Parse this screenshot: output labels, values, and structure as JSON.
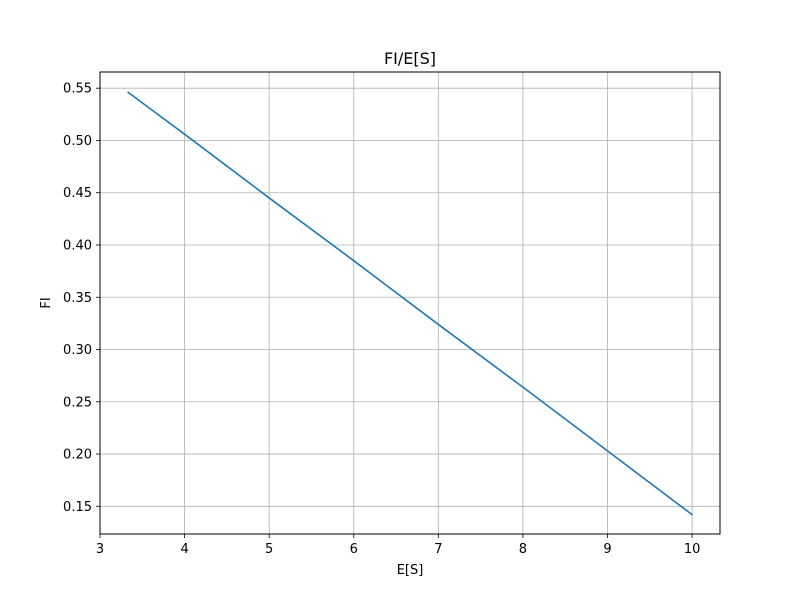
{
  "chart_data": {
    "type": "line",
    "title": "FI/E[S]",
    "xlabel": "E[S]",
    "ylabel": "FI",
    "xlim": [
      3.0,
      10.33
    ],
    "ylim": [
      0.1235,
      0.5655
    ],
    "x_ticks": [
      3,
      4,
      5,
      6,
      7,
      8,
      9,
      10
    ],
    "x_tick_labels": [
      "3",
      "4",
      "5",
      "6",
      "7",
      "8",
      "9",
      "10"
    ],
    "y_ticks": [
      0.15,
      0.2,
      0.25,
      0.3,
      0.35,
      0.4,
      0.45,
      0.5,
      0.55
    ],
    "y_tick_labels": [
      "0.15",
      "0.20",
      "0.25",
      "0.30",
      "0.35",
      "0.40",
      "0.45",
      "0.50",
      "0.55"
    ],
    "grid": true,
    "series": [
      {
        "color": "#1f77b4",
        "x": [
          3.333,
          4,
          5,
          6,
          7,
          8,
          9,
          10
        ],
        "y": [
          0.546,
          0.506,
          0.445,
          0.385,
          0.324,
          0.264,
          0.203,
          0.142
        ]
      }
    ]
  }
}
